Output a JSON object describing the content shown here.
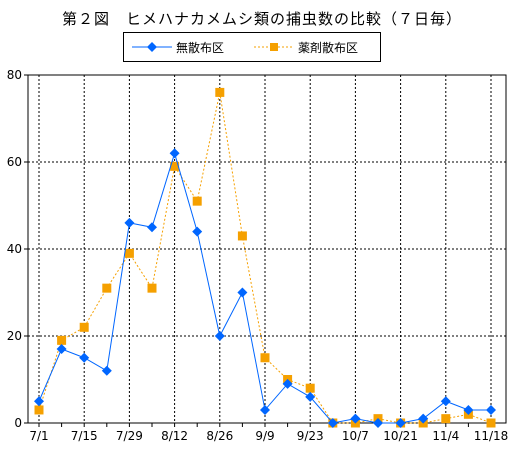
{
  "chart_data": {
    "type": "line",
    "title": "第２図　ヒメハナカメムシ類の捕虫数の比較（７日毎）",
    "xlabel": "",
    "ylabel": "",
    "ylim": [
      0,
      80
    ],
    "yticks": [
      0,
      20,
      40,
      60,
      80
    ],
    "x_tick_labels": [
      "7/1",
      "7/15",
      "7/29",
      "8/12",
      "8/26",
      "9/9",
      "9/23",
      "10/7",
      "10/21",
      "11/4",
      "11/18"
    ],
    "grid": true,
    "legend_position": "top-center",
    "series": [
      {
        "name": "無散布区",
        "color": "#0066ff",
        "marker": "diamond",
        "line": "solid",
        "values": [
          5,
          17,
          15,
          12,
          46,
          45,
          62,
          44,
          20,
          30,
          3,
          9,
          6,
          0,
          1,
          0,
          0,
          1,
          5,
          3,
          3
        ]
      },
      {
        "name": "薬剤散布区",
        "color": "#f5a000",
        "marker": "square",
        "line": "dotted",
        "values": [
          3,
          19,
          22,
          31,
          39,
          31,
          59,
          51,
          76,
          43,
          15,
          10,
          8,
          0,
          0,
          1,
          0,
          0,
          1,
          2,
          0
        ]
      }
    ]
  }
}
